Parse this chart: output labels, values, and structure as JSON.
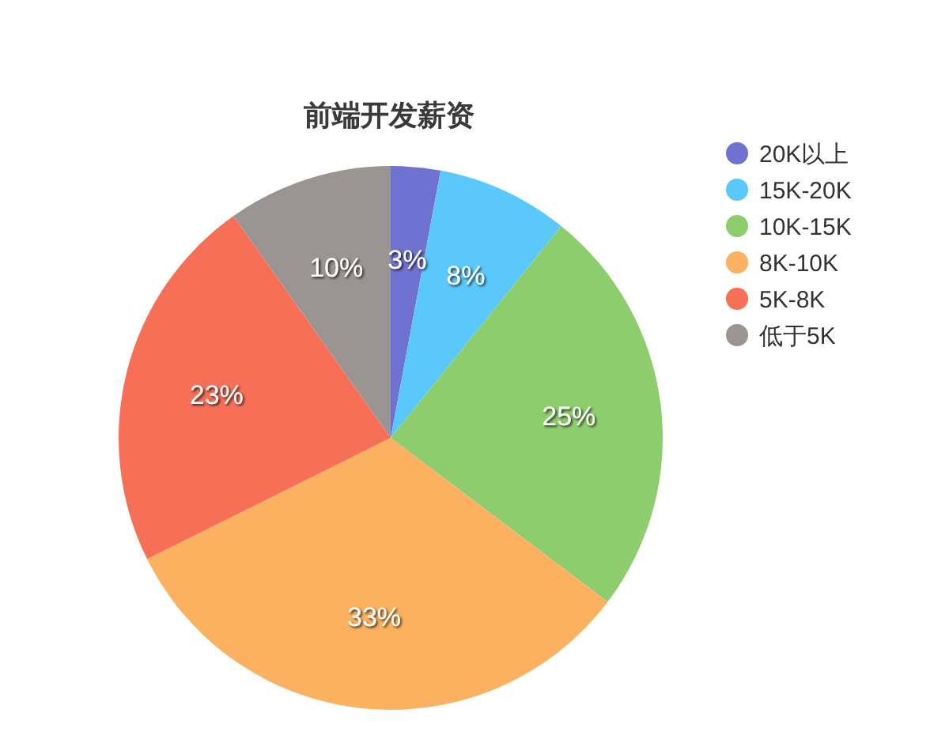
{
  "chart_data": {
    "type": "pie",
    "title": "前端开发薪资",
    "categories": [
      "20K以上",
      "15K-20K",
      "10K-15K",
      "8K-10K",
      "5K-8K",
      "低于5K"
    ],
    "values": [
      3,
      8,
      25,
      33,
      23,
      10
    ],
    "value_labels": [
      "3%",
      "8%",
      "25%",
      "33%",
      "23%",
      "10%"
    ],
    "colors": [
      "#6f72d0",
      "#5ac8fa",
      "#8ecd6e",
      "#fbb160",
      "#f76f57",
      "#9a9592"
    ],
    "legend": "right"
  }
}
